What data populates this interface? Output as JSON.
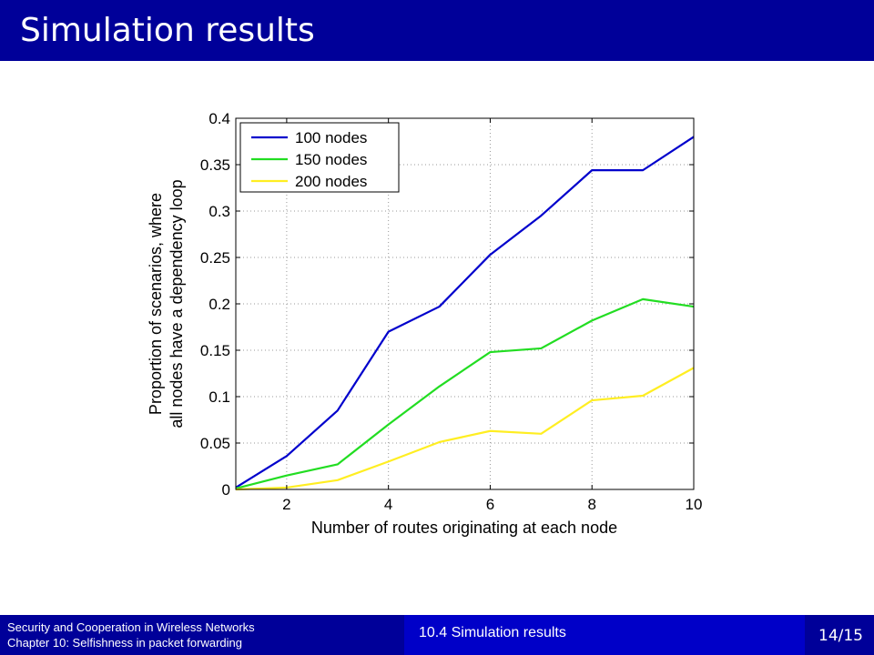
{
  "slide": {
    "title": "Simulation results"
  },
  "footer": {
    "left_line1": "Security and Cooperation in Wireless Networks",
    "left_line2": "Chapter 10: Selfishness in packet forwarding",
    "section": "10.4 Simulation results",
    "page": "14/15"
  },
  "colors": {
    "title_bar": "#000099",
    "footer_mid": "#0000c8"
  },
  "chart_data": {
    "type": "line",
    "title": "",
    "xlabel": "Number of routes originating at each node",
    "ylabel_line1": "Proportion of scenarios, where",
    "ylabel_line2": "all nodes have a dependency loop",
    "xlim": [
      1,
      10
    ],
    "ylim": [
      0,
      0.4
    ],
    "grid": true,
    "legend_position": "top-left",
    "x_ticks": [
      2,
      4,
      6,
      8,
      10
    ],
    "y_ticks": [
      0,
      0.05,
      0.1,
      0.15,
      0.2,
      0.25,
      0.3,
      0.35,
      0.4
    ],
    "x_tick_labels": [
      "2",
      "4",
      "6",
      "8",
      "10"
    ],
    "y_tick_labels": [
      "0",
      "0.05",
      "0.1",
      "0.15",
      "0.2",
      "0.25",
      "0.3",
      "0.35",
      "0.4"
    ],
    "x": [
      1,
      2,
      3,
      4,
      5,
      6,
      7,
      8,
      9,
      10
    ],
    "series": [
      {
        "name": "100 nodes",
        "color": "#0000cc",
        "values": [
          0.002,
          0.036,
          0.085,
          0.17,
          0.197,
          0.253,
          0.295,
          0.344,
          0.344,
          0.38
        ]
      },
      {
        "name": "150 nodes",
        "color": "#22dd22",
        "values": [
          0.001,
          0.015,
          0.027,
          0.07,
          0.111,
          0.148,
          0.152,
          0.182,
          0.205,
          0.197
        ]
      },
      {
        "name": "200 nodes",
        "color": "#ffee22",
        "values": [
          0.0,
          0.002,
          0.01,
          0.03,
          0.051,
          0.063,
          0.06,
          0.096,
          0.101,
          0.131
        ]
      }
    ]
  }
}
